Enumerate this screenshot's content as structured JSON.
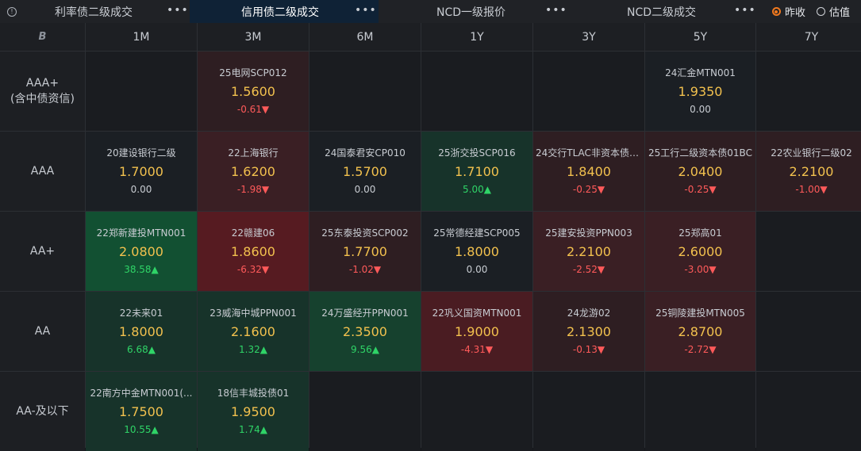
{
  "tabs": [
    {
      "label": "利率债二级成交",
      "more": "•••"
    },
    {
      "label": "信用债二级成交",
      "more": "•••"
    },
    {
      "label": "NCD一级报价",
      "more": "•••"
    },
    {
      "label": "NCD二级成交",
      "more": "•••"
    }
  ],
  "radios": [
    {
      "label": "昨收",
      "selected": true
    },
    {
      "label": "估值",
      "selected": false
    }
  ],
  "corner_label": "B",
  "columns": [
    "1M",
    "3M",
    "6M",
    "1Y",
    "3Y",
    "5Y",
    "7Y"
  ],
  "rows": [
    {
      "label_line1": "AAA+",
      "label_line2": "(含中债资信)"
    },
    {
      "label_line1": "AAA",
      "label_line2": ""
    },
    {
      "label_line1": "AA+",
      "label_line2": ""
    },
    {
      "label_line1": "AA",
      "label_line2": ""
    },
    {
      "label_line1": "AA-及以下",
      "label_line2": ""
    }
  ],
  "cells": [
    [
      null,
      {
        "name": "25电网SCP012",
        "rate": "1.5600",
        "change": "-0.61▼",
        "dir": "down",
        "tone": "red1"
      },
      null,
      null,
      null,
      {
        "name": "24汇金MTN001",
        "rate": "1.9350",
        "change": "0.00",
        "dir": "flat",
        "tone": "none"
      },
      null
    ],
    [
      {
        "name": "20建设银行二级",
        "rate": "1.7000",
        "change": "0.00",
        "dir": "flat",
        "tone": "none"
      },
      {
        "name": "22上海银行",
        "rate": "1.6200",
        "change": "-1.98▼",
        "dir": "down",
        "tone": "red2"
      },
      {
        "name": "24国泰君安CP010",
        "rate": "1.5700",
        "change": "0.00",
        "dir": "flat",
        "tone": "none"
      },
      {
        "name": "25浙交投SCP016",
        "rate": "1.7100",
        "change": "5.00▲",
        "dir": "up",
        "tone": "grn1"
      },
      {
        "name": "24交行TLAC非资本债0...",
        "rate": "1.8400",
        "change": "-0.25▼",
        "dir": "down",
        "tone": "red1"
      },
      {
        "name": "25工行二级资本债01BC",
        "rate": "2.0400",
        "change": "-0.25▼",
        "dir": "down",
        "tone": "red1"
      },
      {
        "name": "22农业银行二级02",
        "rate": "2.2100",
        "change": "-1.00▼",
        "dir": "down",
        "tone": "red1"
      }
    ],
    [
      {
        "name": "22郑新建投MTN001",
        "rate": "2.0800",
        "change": "38.58▲",
        "dir": "up",
        "tone": "grn3"
      },
      {
        "name": "22赣建06",
        "rate": "1.8600",
        "change": "-6.32▼",
        "dir": "down",
        "tone": "red3"
      },
      {
        "name": "25东泰投资SCP002",
        "rate": "1.7700",
        "change": "-1.02▼",
        "dir": "down",
        "tone": "red1"
      },
      {
        "name": "25常德经建SCP005",
        "rate": "1.8000",
        "change": "0.00",
        "dir": "flat",
        "tone": "none"
      },
      {
        "name": "25建安投资PPN003",
        "rate": "2.2100",
        "change": "-2.52▼",
        "dir": "down",
        "tone": "red2"
      },
      {
        "name": "25郑高01",
        "rate": "2.6000",
        "change": "-3.00▼",
        "dir": "down",
        "tone": "red2"
      },
      null
    ],
    [
      {
        "name": "22未来01",
        "rate": "1.8000",
        "change": "6.68▲",
        "dir": "up",
        "tone": "grn1"
      },
      {
        "name": "23威海中城PPN001",
        "rate": "2.1600",
        "change": "1.32▲",
        "dir": "up",
        "tone": "grn1"
      },
      {
        "name": "24万盛经开PPN001",
        "rate": "2.3500",
        "change": "9.56▲",
        "dir": "up",
        "tone": "grn2"
      },
      {
        "name": "22巩义国资MTN001",
        "rate": "1.9000",
        "change": "-4.31▼",
        "dir": "down",
        "tone": "red4"
      },
      {
        "name": "24龙游02",
        "rate": "2.1300",
        "change": "-0.13▼",
        "dir": "down",
        "tone": "red1"
      },
      {
        "name": "25铜陵建投MTN005",
        "rate": "2.8700",
        "change": "-2.72▼",
        "dir": "down",
        "tone": "red2"
      },
      null
    ],
    [
      {
        "name": "22南方中金MTN001(...",
        "rate": "1.7500",
        "change": "10.55▲",
        "dir": "up",
        "tone": "grn1"
      },
      {
        "name": "18信丰城投债01",
        "rate": "1.9500",
        "change": "1.74▲",
        "dir": "up",
        "tone": "grn1"
      },
      null,
      null,
      null,
      null,
      null
    ]
  ],
  "colors": {
    "accent_orange": "#f0791e",
    "rate_yellow": "#f2c14e",
    "down_red": "#ff5a5a",
    "up_green": "#2fd467",
    "active_tab_bg": "#0f2236"
  }
}
